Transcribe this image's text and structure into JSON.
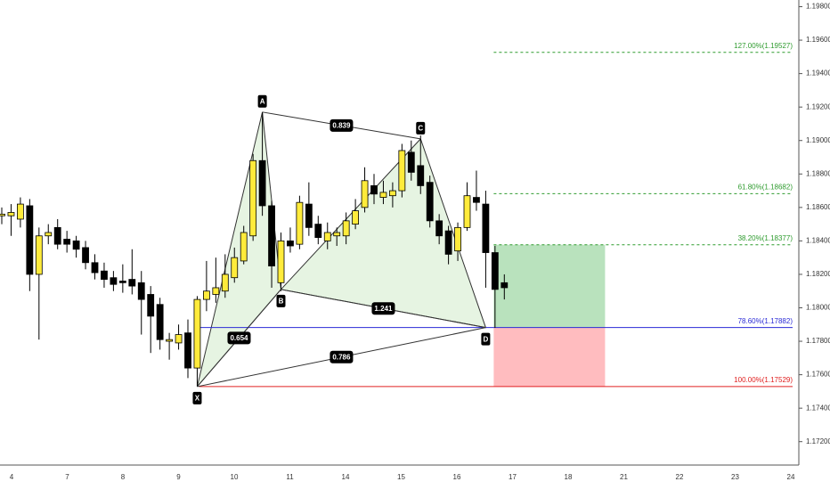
{
  "chart_data": {
    "type": "candlestick",
    "up_color": "#ffeb3b",
    "down_color": "#000000",
    "ylim": [
      1.1706,
      1.1984
    ],
    "yticks": [
      {
        "value": 1.198,
        "label": "1.19800"
      },
      {
        "value": 1.196,
        "label": "1.19600"
      },
      {
        "value": 1.194,
        "label": "1.19400"
      },
      {
        "value": 1.192,
        "label": "1.19200"
      },
      {
        "value": 1.19,
        "label": "1.19000"
      },
      {
        "value": 1.188,
        "label": "1.18800"
      },
      {
        "value": 1.186,
        "label": "1.18600"
      },
      {
        "value": 1.184,
        "label": "1.18400"
      },
      {
        "value": 1.182,
        "label": "1.18200"
      },
      {
        "value": 1.18,
        "label": "1.18000"
      },
      {
        "value": 1.178,
        "label": "1.17800"
      },
      {
        "value": 1.176,
        "label": "1.17600"
      },
      {
        "value": 1.174,
        "label": "1.17400"
      },
      {
        "value": 1.172,
        "label": "1.17200"
      }
    ],
    "categories": [
      "4",
      "7",
      "8",
      "9",
      "10",
      "11",
      "14",
      "15",
      "16",
      "17",
      "18",
      "21",
      "22",
      "23",
      "24"
    ],
    "open": [
      1.1855,
      1.1855,
      1.1853,
      1.1861,
      1.182,
      1.1843,
      1.1848,
      1.1841,
      1.184,
      1.1836,
      1.1827,
      1.1822,
      1.1818,
      1.1816,
      1.1817,
      1.1815,
      1.1808,
      1.1802,
      1.178,
      1.1779,
      1.1785,
      1.1764,
      1.1805,
      1.1808,
      1.181,
      1.1818,
      1.1828,
      1.1843,
      1.1888,
      1.1861,
      1.1815,
      1.184,
      1.1838,
      1.1862,
      1.185,
      1.184,
      1.1843,
      1.1843,
      1.185,
      1.186,
      1.1873,
      1.1866,
      1.1867,
      1.187,
      1.1893,
      1.1885,
      1.1875,
      1.1852,
      1.1846,
      1.1834,
      1.1848,
      1.1866,
      1.1862,
      1.1833,
      1.1815
    ],
    "high": [
      1.186,
      1.1862,
      1.1866,
      1.1865,
      1.1848,
      1.185,
      1.1853,
      1.1846,
      1.1843,
      1.184,
      1.1832,
      1.1827,
      1.1822,
      1.1826,
      1.1835,
      1.1822,
      1.1813,
      1.1806,
      1.1785,
      1.179,
      1.1793,
      1.1807,
      1.1828,
      1.183,
      1.1832,
      1.1836,
      1.1849,
      1.1892,
      1.1917,
      1.1864,
      1.1845,
      1.1848,
      1.1867,
      1.1875,
      1.1855,
      1.1851,
      1.1848,
      1.1857,
      1.1865,
      1.1884,
      1.188,
      1.1876,
      1.1875,
      1.1898,
      1.19,
      1.1903,
      1.1879,
      1.1856,
      1.1849,
      1.1851,
      1.1875,
      1.1882,
      1.187,
      1.1837,
      1.182
    ],
    "low": [
      1.185,
      1.1843,
      1.1848,
      1.181,
      1.1781,
      1.1838,
      1.1835,
      1.1833,
      1.183,
      1.1823,
      1.1817,
      1.1812,
      1.181,
      1.1809,
      1.1808,
      1.1784,
      1.1773,
      1.1775,
      1.1769,
      1.1775,
      1.1758,
      1.1753,
      1.1798,
      1.1803,
      1.1806,
      1.1815,
      1.1826,
      1.184,
      1.1855,
      1.1812,
      1.181,
      1.1833,
      1.1835,
      1.1843,
      1.1838,
      1.1835,
      1.1837,
      1.1838,
      1.1847,
      1.1857,
      1.1862,
      1.1862,
      1.186,
      1.1866,
      1.1876,
      1.1868,
      1.1848,
      1.1838,
      1.1826,
      1.1828,
      1.1846,
      1.1858,
      1.1812,
      1.1788,
      1.1805
    ],
    "close": [
      1.1856,
      1.1857,
      1.1862,
      1.182,
      1.1843,
      1.1845,
      1.1838,
      1.1838,
      1.1835,
      1.1827,
      1.1821,
      1.1817,
      1.1814,
      1.1815,
      1.1813,
      1.1805,
      1.1795,
      1.1781,
      1.1781,
      1.1784,
      1.1764,
      1.1805,
      1.181,
      1.1812,
      1.182,
      1.183,
      1.1845,
      1.1888,
      1.1861,
      1.1825,
      1.184,
      1.1837,
      1.1863,
      1.1848,
      1.1842,
      1.1845,
      1.1845,
      1.1852,
      1.1858,
      1.1876,
      1.1868,
      1.1869,
      1.187,
      1.1894,
      1.1881,
      1.1873,
      1.1852,
      1.1843,
      1.1832,
      1.1848,
      1.1867,
      1.1863,
      1.1833,
      1.1811,
      1.1812
    ],
    "points": [
      {
        "label": "X",
        "index": 21,
        "price": 1.17529
      },
      {
        "label": "A",
        "index": 28,
        "price": 1.1917
      },
      {
        "label": "B",
        "index": 30,
        "price": 1.1811
      },
      {
        "label": "C",
        "index": 45,
        "price": 1.1901
      },
      {
        "label": "D",
        "index": 52,
        "price": 1.17882
      }
    ],
    "ratios": [
      {
        "from": 0,
        "to": 2,
        "label": "0.654"
      },
      {
        "from": 1,
        "to": 3,
        "label": "0.839"
      },
      {
        "from": 2,
        "to": 4,
        "label": "1.241"
      },
      {
        "from": 0,
        "to": 4,
        "label": "0.786"
      }
    ],
    "levels": [
      {
        "label": "127.00%(1.19527)",
        "value": 1.19527,
        "color": "#2e9b2e",
        "dashed": true
      },
      {
        "label": "61.80%(1.18682)",
        "value": 1.18682,
        "color": "#2e9b2e",
        "dashed": true
      },
      {
        "label": "38.20%(1.18377)",
        "value": 1.18377,
        "color": "#2e9b2e",
        "dashed": true
      },
      {
        "label": "78.60%(1.17882)",
        "value": 1.17882,
        "color": "#2a2ad6",
        "dashed": false
      },
      {
        "label": "100.00%(1.17529)",
        "value": 1.17529,
        "color": "#e02020",
        "dashed": false
      }
    ]
  }
}
